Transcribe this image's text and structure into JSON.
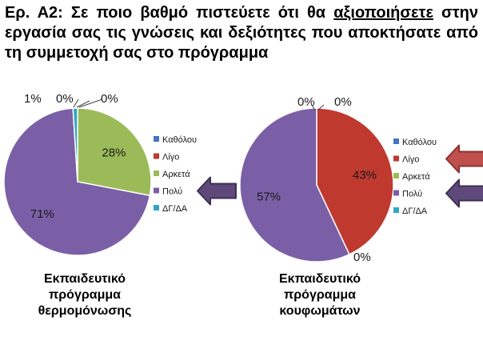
{
  "slide": {
    "title_prefix": "Ερ. Α2: Σε ποιο βαθμό πιστεύετε ότι θα ",
    "title_keyword": "αξιοποιήσετε",
    "title_suffix": " στην εργασία σας τις γνώσεις και δεξιότητες που αποκτήσατε από τη συμμετοχή σας στο πρόγραμμα"
  },
  "colors": {
    "category": [
      "#4472C4",
      "#C0392F",
      "#9BBB59",
      "#7B5FA6",
      "#31A6C4"
    ],
    "arrow_red": "#C0504D",
    "arrow_red_dark": "#8B3230",
    "arrow_purple": "#5F497A",
    "arrow_purple_dark": "#3D2F52"
  },
  "chart_data": [
    {
      "type": "pie",
      "title": "Εκπαιδευτικό πρόγραμμα θερμομόνωσης",
      "title_lines": [
        "Εκπαιδευτικό",
        "πρόγραμμα",
        "θερμομόνωσης"
      ],
      "categories": [
        "Καθόλου",
        "Λίγο",
        "Αρκετά",
        "Πολύ",
        "ΔΓ/ΔΑ"
      ],
      "values": [
        0,
        0,
        28,
        71,
        1
      ],
      "labels": [
        "0%",
        "0%",
        "28%",
        "71%",
        "1%"
      ],
      "legend": "right",
      "highlight_arrows": [
        {
          "category": "Πολύ",
          "color": "purple"
        }
      ]
    },
    {
      "type": "pie",
      "title": "Εκπαιδευτικό πρόγραμμα κουφωμάτων",
      "title_lines": [
        "Εκπαιδευτικό",
        "πρόγραμμα",
        "κουφωμάτων"
      ],
      "categories": [
        "Καθόλου",
        "Λίγο",
        "Αρκετά",
        "Πολύ",
        "ΔΓ/ΔΑ"
      ],
      "values": [
        0,
        43,
        0,
        57,
        0
      ],
      "labels": [
        "0%",
        "43%",
        "0%",
        "57%",
        "0%"
      ],
      "legend": "right",
      "highlight_arrows": [
        {
          "category": "Λίγο",
          "color": "red"
        },
        {
          "category": "Πολύ",
          "color": "purple"
        }
      ]
    }
  ]
}
